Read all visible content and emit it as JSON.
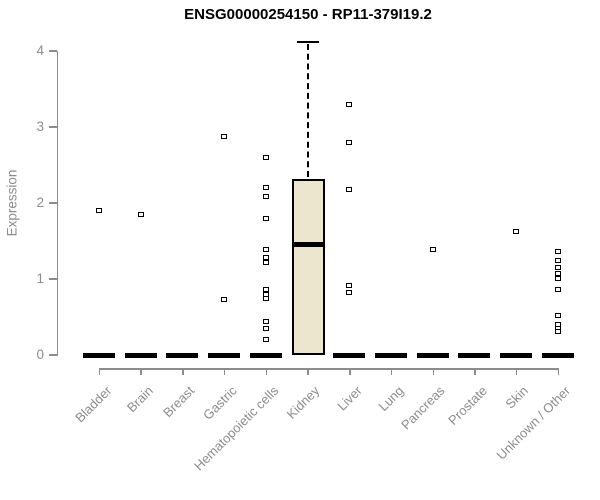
{
  "chart_data": {
    "type": "boxplot",
    "title": "ENSG00000254150 - RP11-379I19.2",
    "ylabel": "Expression",
    "xlabel": "",
    "ylim": [
      0,
      4
    ],
    "yticks": [
      0,
      1,
      2,
      3,
      4
    ],
    "grid": false,
    "legend": false,
    "categories": [
      "Bladder",
      "Brain",
      "Breast",
      "Gastric",
      "Hematopoietic cells",
      "Kidney",
      "Liver",
      "Lung",
      "Pancreas",
      "Prostate",
      "Skin",
      "Unknown / Other"
    ],
    "boxes": [
      {
        "category": "Bladder",
        "q1": 0,
        "median": 0,
        "q3": 0,
        "whisker_low": 0,
        "whisker_high": 0,
        "outliers": [
          1.9
        ]
      },
      {
        "category": "Brain",
        "q1": 0,
        "median": 0,
        "q3": 0,
        "whisker_low": 0,
        "whisker_high": 0,
        "outliers": [
          1.84
        ]
      },
      {
        "category": "Breast",
        "q1": 0,
        "median": 0,
        "q3": 0,
        "whisker_low": 0,
        "whisker_high": 0,
        "outliers": []
      },
      {
        "category": "Gastric",
        "q1": 0,
        "median": 0,
        "q3": 0,
        "whisker_low": 0,
        "whisker_high": 0,
        "outliers": [
          2.87,
          0.72
        ]
      },
      {
        "category": "Hematopoietic cells",
        "q1": 0,
        "median": 0,
        "q3": 0,
        "whisker_low": 0,
        "whisker_high": 0,
        "outliers": [
          2.59,
          2.2,
          2.08,
          1.79,
          1.38,
          1.28,
          1.21,
          0.86,
          0.79,
          0.74,
          0.44,
          0.34,
          0.2
        ]
      },
      {
        "category": "Kidney",
        "q1": 0,
        "median": 1.46,
        "q3": 2.32,
        "whisker_low": 0,
        "whisker_high": 4.12,
        "outliers": []
      },
      {
        "category": "Liver",
        "q1": 0,
        "median": 0,
        "q3": 0,
        "whisker_low": 0,
        "whisker_high": 0,
        "outliers": [
          3.29,
          2.79,
          2.17,
          0.91,
          0.82
        ]
      },
      {
        "category": "Lung",
        "q1": 0,
        "median": 0,
        "q3": 0,
        "whisker_low": 0,
        "whisker_high": 0,
        "outliers": []
      },
      {
        "category": "Pancreas",
        "q1": 0,
        "median": 0,
        "q3": 0,
        "whisker_low": 0,
        "whisker_high": 0,
        "outliers": [
          1.38
        ]
      },
      {
        "category": "Prostate",
        "q1": 0,
        "median": 0,
        "q3": 0,
        "whisker_low": 0,
        "whisker_high": 0,
        "outliers": []
      },
      {
        "category": "Skin",
        "q1": 0,
        "median": 0,
        "q3": 0,
        "whisker_low": 0,
        "whisker_high": 0,
        "outliers": [
          1.62
        ]
      },
      {
        "category": "Unknown / Other",
        "q1": 0,
        "median": 0,
        "q3": 0,
        "whisker_low": 0,
        "whisker_high": 0,
        "outliers": [
          1.35,
          1.24,
          1.15,
          1.06,
          1.0,
          0.86,
          0.51,
          0.4,
          0.34,
          0.3
        ]
      }
    ],
    "colors": {
      "box_fill": "#ece6cf",
      "box_border": "#000000",
      "median": "#000000",
      "whisker": "#000000",
      "outlier_border": "#000000",
      "outlier_fill": "#ffffff",
      "axis": "#8c8c8c",
      "tick_label": "#8c8c8c",
      "title": "#000000",
      "background": "#ffffff"
    }
  }
}
